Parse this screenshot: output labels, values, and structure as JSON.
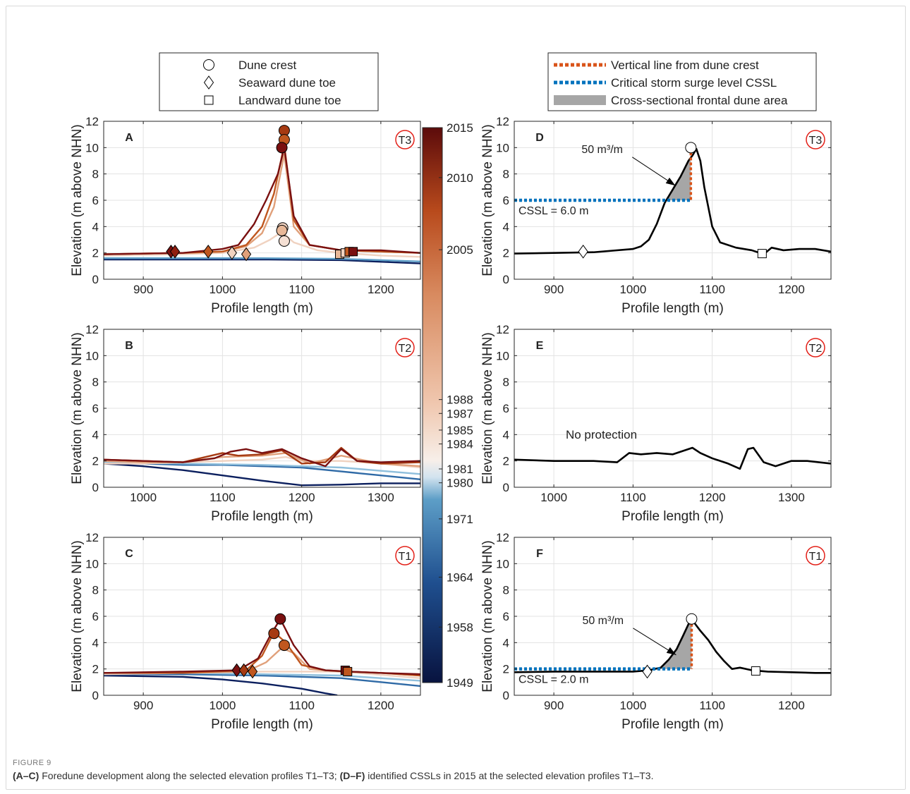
{
  "figure_label": "FIGURE 9",
  "caption": {
    "p1_bold": "(A–C)",
    "p1_text": " Foredune development along the selected elevation profiles T1–T3; ",
    "p2_bold": "(D–F)",
    "p2_text": " identified CSSLs in 2015 at the selected elevation profiles T1–T3."
  },
  "legend_left": {
    "items": [
      {
        "marker": "circle",
        "label": "Dune crest"
      },
      {
        "marker": "diamond",
        "label": "Seaward dune toe"
      },
      {
        "marker": "square",
        "label": "Landward dune toe"
      }
    ]
  },
  "legend_right": {
    "items": [
      {
        "style": "orange-dotted",
        "label": "Vertical line from dune crest"
      },
      {
        "style": "blue-dotted",
        "label": "Critical storm surge level CSSL"
      },
      {
        "style": "gray-fill",
        "label": "Cross-sectional frontal dune area"
      }
    ]
  },
  "colors": {
    "orange_line": "#d95319",
    "cssl_blue": "#0072bd",
    "fill_gray": "#a6a6a6",
    "badge_red": "#e32119"
  },
  "colorbar": {
    "min": 1949,
    "max": 2015,
    "ticks": [
      2015,
      2010,
      2005,
      1988,
      1987,
      1985,
      1984,
      1981,
      1980,
      1971,
      1964,
      1958,
      1949
    ],
    "tick_values": [
      1,
      0.91,
      0.78,
      0.51,
      0.485,
      0.455,
      0.43,
      0.385,
      0.36,
      0.295,
      0.19,
      0.1,
      0.0
    ],
    "stops": [
      {
        "v": 0.0,
        "c": "#08133f"
      },
      {
        "v": 0.18,
        "c": "#1f4f8f"
      },
      {
        "v": 0.33,
        "c": "#5d9ec7"
      },
      {
        "v": 0.37,
        "c": "#d2e3ef"
      },
      {
        "v": 0.4,
        "c": "#f7efe9"
      },
      {
        "v": 0.5,
        "c": "#f0c8b0"
      },
      {
        "v": 0.7,
        "c": "#d88a5f"
      },
      {
        "v": 0.85,
        "c": "#b84a1c"
      },
      {
        "v": 1.0,
        "c": "#5c0b0b"
      }
    ]
  },
  "chart_data": [
    {
      "panel": "A",
      "transect": "T3",
      "type": "line",
      "xlabel": "Profile length (m)",
      "ylabel": "Elevation (m above NHN)",
      "xlim": [
        850,
        1250
      ],
      "ylim": [
        0,
        12
      ],
      "xticks": [
        900,
        1000,
        1100,
        1200
      ],
      "yticks": [
        0,
        2,
        4,
        6,
        8,
        10,
        12
      ],
      "grid": true,
      "series": [
        {
          "color": "#0b1f5e",
          "x": [
            850,
            950,
            1050,
            1150,
            1250
          ],
          "y": [
            1.5,
            1.5,
            1.5,
            1.45,
            1.2
          ]
        },
        {
          "color": "#5d9ec7",
          "x": [
            850,
            950,
            1050,
            1150,
            1250
          ],
          "y": [
            1.6,
            1.6,
            1.6,
            1.55,
            1.35
          ]
        },
        {
          "color": "#f0d2c0",
          "x": [
            850,
            950,
            1000,
            1040,
            1060,
            1075,
            1090,
            1120,
            1150,
            1200,
            1250
          ],
          "y": [
            1.8,
            1.9,
            2.0,
            2.4,
            3.0,
            3.6,
            2.8,
            2.2,
            2.0,
            1.8,
            1.7
          ]
        },
        {
          "color": "#e0a07a",
          "x": [
            850,
            950,
            1000,
            1030,
            1050,
            1065,
            1078,
            1090,
            1110,
            1150,
            1200,
            1250
          ],
          "y": [
            1.9,
            2.0,
            2.1,
            2.5,
            3.5,
            5.5,
            9.5,
            4.0,
            2.6,
            2.2,
            2.1,
            2.0
          ]
        },
        {
          "color": "#c0571f",
          "x": [
            850,
            950,
            1000,
            1030,
            1050,
            1065,
            1078,
            1090,
            1110,
            1150,
            1200,
            1250
          ],
          "y": [
            1.9,
            2.0,
            2.1,
            2.6,
            4.0,
            6.5,
            10.2,
            4.5,
            2.6,
            2.2,
            2.1,
            2.0
          ]
        },
        {
          "color": "#7a1010",
          "x": [
            850,
            950,
            1000,
            1020,
            1040,
            1055,
            1070,
            1078,
            1090,
            1110,
            1150,
            1200,
            1250
          ],
          "y": [
            1.9,
            2.0,
            2.3,
            2.6,
            4.2,
            6.0,
            8.0,
            10.0,
            4.8,
            2.6,
            2.2,
            2.2,
            2.0
          ]
        }
      ],
      "crests": [
        {
          "x": 1078,
          "y": 11.3,
          "color": "#a63a12"
        },
        {
          "x": 1078,
          "y": 10.6,
          "color": "#c0571f"
        },
        {
          "x": 1075,
          "y": 10.0,
          "color": "#7a1010"
        },
        {
          "x": 1076,
          "y": 3.9,
          "color": "#f0d2c0"
        },
        {
          "x": 1075,
          "y": 3.7,
          "color": "#e8b898"
        },
        {
          "x": 1078,
          "y": 2.9,
          "color": "#f5e0d4"
        }
      ],
      "seaward_toes": [
        {
          "x": 935,
          "y": 2.1,
          "color": "#7a1010"
        },
        {
          "x": 940,
          "y": 2.1,
          "color": "#8f1e10"
        },
        {
          "x": 982,
          "y": 2.1,
          "color": "#c0571f"
        },
        {
          "x": 1012,
          "y": 2.0,
          "color": "#f0d2c0"
        },
        {
          "x": 1030,
          "y": 1.9,
          "color": "#e0a07a"
        }
      ],
      "landward_toes": [
        {
          "x": 1148,
          "y": 1.9,
          "color": "#e8b898"
        },
        {
          "x": 1155,
          "y": 2.0,
          "color": "#f0d2c0"
        },
        {
          "x": 1160,
          "y": 2.1,
          "color": "#c0571f"
        },
        {
          "x": 1165,
          "y": 2.1,
          "color": "#7a1010"
        }
      ]
    },
    {
      "panel": "B",
      "transect": "T2",
      "type": "line",
      "xlabel": "Profile length (m)",
      "ylabel": "Elevation (m above NHN)",
      "xlim": [
        950,
        1350
      ],
      "ylim": [
        0,
        12
      ],
      "xticks": [
        1000,
        1100,
        1200,
        1300
      ],
      "yticks": [
        0,
        2,
        4,
        6,
        8,
        10,
        12
      ],
      "grid": true,
      "series": [
        {
          "color": "#0b1f5e",
          "x": [
            950,
            1000,
            1050,
            1100,
            1150,
            1200,
            1250,
            1300,
            1350
          ],
          "y": [
            1.8,
            1.6,
            1.3,
            0.9,
            0.5,
            0.15,
            0.2,
            0.3,
            0.3
          ]
        },
        {
          "color": "#2f6aa6",
          "x": [
            950,
            1000,
            1050,
            1100,
            1150,
            1200,
            1250,
            1300,
            1350
          ],
          "y": [
            1.9,
            1.8,
            1.7,
            1.7,
            1.6,
            1.5,
            1.2,
            0.9,
            0.6
          ]
        },
        {
          "color": "#8fbfdc",
          "x": [
            950,
            1050,
            1150,
            1250,
            1350
          ],
          "y": [
            1.9,
            1.8,
            1.7,
            1.5,
            1.0
          ]
        },
        {
          "color": "#f0d2c0",
          "x": [
            950,
            1000,
            1050,
            1100,
            1150,
            1180,
            1200,
            1250,
            1300,
            1350
          ],
          "y": [
            1.8,
            1.8,
            1.9,
            2.0,
            2.1,
            2.3,
            2.0,
            2.0,
            1.8,
            1.5
          ]
        },
        {
          "color": "#e0a07a",
          "x": [
            950,
            1000,
            1050,
            1100,
            1150,
            1180,
            1210,
            1250,
            1300,
            1350
          ],
          "y": [
            2.0,
            1.9,
            1.9,
            2.3,
            2.4,
            2.6,
            1.8,
            2.4,
            1.8,
            1.6
          ]
        },
        {
          "color": "#a63a12",
          "x": [
            950,
            1000,
            1050,
            1100,
            1120,
            1150,
            1175,
            1200,
            1230,
            1250,
            1270,
            1300,
            1350
          ],
          "y": [
            2.1,
            2.0,
            1.9,
            2.6,
            2.4,
            2.5,
            2.8,
            1.8,
            1.9,
            3.0,
            2.0,
            1.8,
            1.9
          ]
        },
        {
          "color": "#7a1010",
          "x": [
            950,
            1000,
            1050,
            1090,
            1110,
            1130,
            1150,
            1175,
            1200,
            1230,
            1250,
            1270,
            1300,
            1350
          ],
          "y": [
            2.1,
            2.0,
            1.9,
            2.2,
            2.7,
            2.9,
            2.6,
            2.9,
            2.2,
            1.6,
            2.9,
            2.0,
            1.9,
            2.0
          ]
        }
      ]
    },
    {
      "panel": "C",
      "transect": "T1",
      "type": "line",
      "xlabel": "Profile length (m)",
      "ylabel": "Elevation (m above NHN)",
      "xlim": [
        850,
        1250
      ],
      "ylim": [
        0,
        12
      ],
      "xticks": [
        900,
        1000,
        1100,
        1200
      ],
      "yticks": [
        0,
        2,
        4,
        6,
        8,
        10,
        12
      ],
      "grid": true,
      "series": [
        {
          "color": "#0b1f5e",
          "x": [
            850,
            950,
            1000,
            1050,
            1100,
            1130,
            1145
          ],
          "y": [
            1.5,
            1.4,
            1.2,
            0.9,
            0.5,
            0.15,
            0.0
          ]
        },
        {
          "color": "#2f6aa6",
          "x": [
            850,
            950,
            1050,
            1150,
            1200,
            1250
          ],
          "y": [
            1.6,
            1.6,
            1.5,
            1.3,
            1.0,
            0.7
          ]
        },
        {
          "color": "#8fbfdc",
          "x": [
            850,
            950,
            1050,
            1150,
            1250
          ],
          "y": [
            1.7,
            1.7,
            1.6,
            1.5,
            1.1
          ]
        },
        {
          "color": "#f0d2c0",
          "x": [
            850,
            950,
            1050,
            1150,
            1250
          ],
          "y": [
            1.6,
            1.7,
            1.8,
            1.8,
            1.3
          ]
        },
        {
          "color": "#e0a07a",
          "x": [
            850,
            950,
            1030,
            1055,
            1075,
            1090,
            1110,
            1150,
            1200,
            1250
          ],
          "y": [
            1.7,
            1.7,
            1.8,
            2.5,
            3.6,
            3.2,
            2.0,
            1.8,
            1.7,
            1.5
          ]
        },
        {
          "color": "#c0571f",
          "x": [
            850,
            950,
            1030,
            1050,
            1065,
            1080,
            1100,
            1130,
            1160,
            1200,
            1250
          ],
          "y": [
            1.7,
            1.7,
            1.9,
            3.0,
            4.8,
            4.0,
            2.3,
            1.9,
            1.8,
            1.7,
            1.5
          ]
        },
        {
          "color": "#7a1010",
          "x": [
            850,
            950,
            1020,
            1045,
            1060,
            1073,
            1090,
            1110,
            1130,
            1160,
            1200,
            1250
          ],
          "y": [
            1.7,
            1.8,
            1.9,
            2.8,
            4.5,
            5.8,
            3.8,
            2.2,
            1.9,
            1.8,
            1.7,
            1.6
          ]
        }
      ],
      "crests": [
        {
          "x": 1073,
          "y": 5.8,
          "color": "#7a1010"
        },
        {
          "x": 1065,
          "y": 4.7,
          "color": "#a63a12"
        },
        {
          "x": 1078,
          "y": 3.8,
          "color": "#c0571f"
        }
      ],
      "seaward_toes": [
        {
          "x": 1018,
          "y": 1.9,
          "color": "#7a1010"
        },
        {
          "x": 1027,
          "y": 1.9,
          "color": "#a63a12"
        },
        {
          "x": 1038,
          "y": 1.8,
          "color": "#c0571f"
        }
      ],
      "landward_toes": [
        {
          "x": 1155,
          "y": 1.9,
          "color": "#7a1010"
        },
        {
          "x": 1158,
          "y": 1.8,
          "color": "#c0571f"
        }
      ]
    },
    {
      "panel": "D",
      "transect": "T3",
      "type": "line",
      "xlabel": "Profile length (m)",
      "ylabel": "Elevation (m above NHN)",
      "xlim": [
        850,
        1250
      ],
      "ylim": [
        0,
        12
      ],
      "xticks": [
        900,
        1000,
        1100,
        1200
      ],
      "yticks": [
        0,
        2,
        4,
        6,
        8,
        10,
        12
      ],
      "grid": true,
      "series": [
        {
          "color": "#000000",
          "x": [
            850,
            900,
            950,
            1000,
            1010,
            1020,
            1030,
            1040,
            1050,
            1060,
            1070,
            1075,
            1080,
            1085,
            1090,
            1100,
            1110,
            1130,
            1150,
            1165,
            1175,
            1190,
            1210,
            1230,
            1250
          ],
          "y": [
            1.95,
            2.0,
            2.05,
            2.3,
            2.5,
            3.0,
            4.2,
            5.8,
            6.8,
            7.8,
            9.0,
            9.4,
            9.9,
            9.0,
            7.0,
            4.0,
            2.8,
            2.4,
            2.2,
            1.9,
            2.4,
            2.2,
            2.3,
            2.3,
            2.1
          ]
        }
      ],
      "cssl": 6.0,
      "cssl_label": "CSSL = 6.0 m",
      "crest_x": 1073,
      "area_label": "50 m³/m",
      "crests": [
        {
          "x": 1073,
          "y": 10.0,
          "color": "#ffffff"
        }
      ],
      "seaward_toes": [
        {
          "x": 937,
          "y": 2.1,
          "color": "#ffffff"
        }
      ],
      "landward_toes": [
        {
          "x": 1163,
          "y": 1.95,
          "color": "#ffffff"
        }
      ]
    },
    {
      "panel": "E",
      "transect": "T2",
      "type": "line",
      "xlabel": "Profile length (m)",
      "ylabel": "Elevation (m above NHN)",
      "xlim": [
        950,
        1350
      ],
      "ylim": [
        0,
        12
      ],
      "xticks": [
        1000,
        1100,
        1200,
        1300
      ],
      "yticks": [
        0,
        2,
        4,
        6,
        8,
        10,
        12
      ],
      "grid": true,
      "series": [
        {
          "color": "#000000",
          "x": [
            950,
            1000,
            1050,
            1080,
            1095,
            1110,
            1130,
            1150,
            1175,
            1185,
            1200,
            1220,
            1235,
            1245,
            1252,
            1265,
            1280,
            1300,
            1320,
            1350
          ],
          "y": [
            2.1,
            2.0,
            2.0,
            1.9,
            2.6,
            2.5,
            2.6,
            2.5,
            3.0,
            2.6,
            2.2,
            1.8,
            1.4,
            2.9,
            3.0,
            1.9,
            1.6,
            2.0,
            2.0,
            1.8
          ]
        }
      ],
      "annotation": "No protection"
    },
    {
      "panel": "F",
      "transect": "T1",
      "type": "line",
      "xlabel": "Profile length (m)",
      "ylabel": "Elevation (m above NHN)",
      "xlim": [
        850,
        1250
      ],
      "ylim": [
        0,
        12
      ],
      "xticks": [
        900,
        1000,
        1100,
        1200
      ],
      "yticks": [
        0,
        2,
        4,
        6,
        8,
        10,
        12
      ],
      "grid": true,
      "series": [
        {
          "color": "#000000",
          "x": [
            850,
            900,
            950,
            1000,
            1020,
            1035,
            1045,
            1055,
            1063,
            1070,
            1075,
            1085,
            1095,
            1105,
            1115,
            1125,
            1135,
            1150,
            1170,
            1200,
            1230,
            1250
          ],
          "y": [
            1.75,
            1.8,
            1.8,
            1.8,
            1.9,
            2.1,
            2.7,
            3.5,
            4.5,
            5.4,
            5.7,
            4.9,
            4.2,
            3.3,
            2.6,
            2.0,
            2.1,
            1.9,
            1.8,
            1.75,
            1.7,
            1.7
          ]
        }
      ],
      "cssl": 2.0,
      "cssl_label": "CSSL = 2.0 m",
      "crest_x": 1074,
      "area_label": "50 m³/m",
      "crests": [
        {
          "x": 1074,
          "y": 5.8,
          "color": "#ffffff"
        }
      ],
      "seaward_toes": [
        {
          "x": 1018,
          "y": 1.8,
          "color": "#ffffff"
        }
      ],
      "landward_toes": [
        {
          "x": 1155,
          "y": 1.85,
          "color": "#ffffff"
        }
      ]
    }
  ]
}
